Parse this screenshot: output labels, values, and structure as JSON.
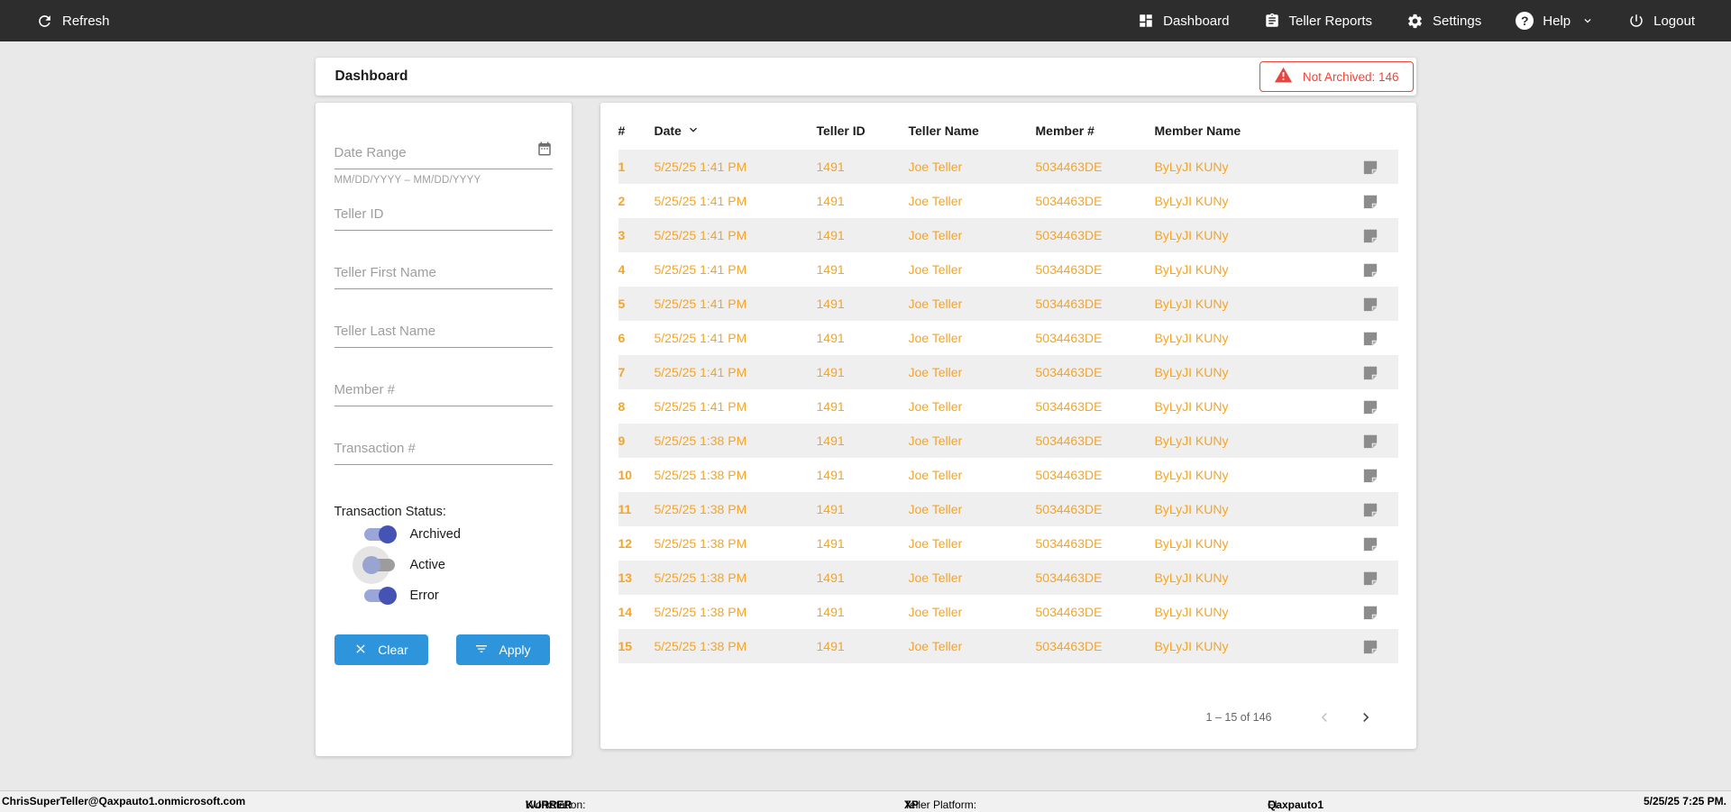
{
  "nav": {
    "refresh_label": "Refresh",
    "items": [
      {
        "label": "Dashboard",
        "icon": "dashboard-icon"
      },
      {
        "label": "Teller Reports",
        "icon": "clipboard-icon"
      },
      {
        "label": "Settings",
        "icon": "gear-icon"
      },
      {
        "label": "Help",
        "icon": "help-icon"
      },
      {
        "label": "Logout",
        "icon": "power-icon"
      }
    ]
  },
  "header": {
    "title": "Dashboard",
    "badge_label": "Not Archived: 146"
  },
  "filters": {
    "date_range_placeholder": "Date Range",
    "date_range_hint": "MM/DD/YYYY – MM/DD/YYYY",
    "fields": [
      "Teller ID",
      "Teller First Name",
      "Teller Last Name",
      "Member #",
      "Transaction #"
    ],
    "status_label": "Transaction Status:",
    "toggles": [
      {
        "label": "Archived",
        "on": true
      },
      {
        "label": "Active",
        "on": false
      },
      {
        "label": "Error",
        "on": true
      }
    ],
    "clear_label": "Clear",
    "apply_label": "Apply"
  },
  "table": {
    "columns": [
      "#",
      "Date",
      "Teller ID",
      "Teller Name",
      "Member #",
      "Member Name"
    ],
    "rows": [
      [
        "1",
        "5/25/25 1:41 PM",
        "1491",
        "Joe Teller",
        "5034463DE",
        "ByLyJI KUNy"
      ],
      [
        "2",
        "5/25/25 1:41 PM",
        "1491",
        "Joe Teller",
        "5034463DE",
        "ByLyJI KUNy"
      ],
      [
        "3",
        "5/25/25 1:41 PM",
        "1491",
        "Joe Teller",
        "5034463DE",
        "ByLyJI KUNy"
      ],
      [
        "4",
        "5/25/25 1:41 PM",
        "1491",
        "Joe Teller",
        "5034463DE",
        "ByLyJI KUNy"
      ],
      [
        "5",
        "5/25/25 1:41 PM",
        "1491",
        "Joe Teller",
        "5034463DE",
        "ByLyJI KUNy"
      ],
      [
        "6",
        "5/25/25 1:41 PM",
        "1491",
        "Joe Teller",
        "5034463DE",
        "ByLyJI KUNy"
      ],
      [
        "7",
        "5/25/25 1:41 PM",
        "1491",
        "Joe Teller",
        "5034463DE",
        "ByLyJI KUNy"
      ],
      [
        "8",
        "5/25/25 1:41 PM",
        "1491",
        "Joe Teller",
        "5034463DE",
        "ByLyJI KUNy"
      ],
      [
        "9",
        "5/25/25 1:38 PM",
        "1491",
        "Joe Teller",
        "5034463DE",
        "ByLyJI KUNy"
      ],
      [
        "10",
        "5/25/25 1:38 PM",
        "1491",
        "Joe Teller",
        "5034463DE",
        "ByLyJI KUNy"
      ],
      [
        "11",
        "5/25/25 1:38 PM",
        "1491",
        "Joe Teller",
        "5034463DE",
        "ByLyJI KUNy"
      ],
      [
        "12",
        "5/25/25 1:38 PM",
        "1491",
        "Joe Teller",
        "5034463DE",
        "ByLyJI KUNy"
      ],
      [
        "13",
        "5/25/25 1:38 PM",
        "1491",
        "Joe Teller",
        "5034463DE",
        "ByLyJI KUNy"
      ],
      [
        "14",
        "5/25/25 1:38 PM",
        "1491",
        "Joe Teller",
        "5034463DE",
        "ByLyJI KUNy"
      ],
      [
        "15",
        "5/25/25 1:38 PM",
        "1491",
        "Joe Teller",
        "5034463DE",
        "ByLyJI KUNy"
      ]
    ],
    "pagination": {
      "range_label": "1 – 15 of 146"
    }
  },
  "statusbar": {
    "user": "ChrisSuperTeller@Qaxpauto1.onmicrosoft.com",
    "workstation_label": "Workstation: ",
    "workstation_value": "KURRER",
    "platform_label": "Teller Platform: ",
    "platform_value": "XP",
    "fi_label": "FI: ",
    "fi_value": "Qaxpauto1",
    "datetime": "5/25/25 7:25 PM."
  },
  "colors": {
    "nav_bg": "#2d2d2d",
    "accent_orange": "#f5a426",
    "primary_blue": "#2e95dc",
    "toggle_on_indigo": "#4553b4",
    "error_red": "#f44336",
    "row_stripe": "#efefef"
  }
}
